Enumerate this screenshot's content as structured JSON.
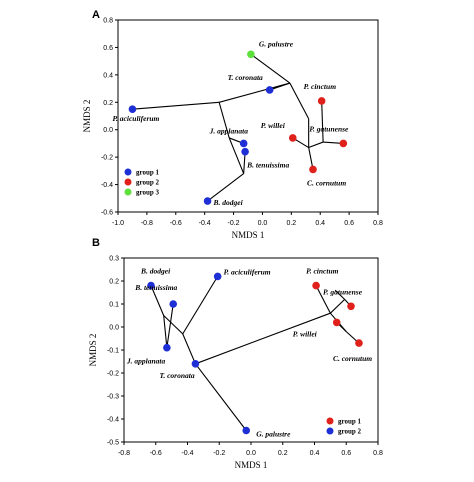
{
  "colors": {
    "group1": "#1f2fd6",
    "group2": "#e0201b",
    "group3": "#5de03c",
    "line": "#000000",
    "axis": "#000000"
  },
  "chart_data": [
    {
      "panel": "A",
      "type": "scatter",
      "xlabel": "NMDS 1",
      "ylabel": "NMDS 2",
      "xlim": [
        -1.0,
        0.8
      ],
      "ylim": [
        -0.6,
        0.8
      ],
      "xticks": [
        "-1.0",
        "-0.8",
        "-0.6",
        "-0.4",
        "-0.2",
        "0.0",
        "0.2",
        "0.4",
        "0.6",
        "0.8"
      ],
      "yticks": [
        "-0.6",
        "-0.4",
        "-0.2",
        "0.0",
        "0.2",
        "0.4",
        "0.6",
        "0.8"
      ],
      "legend": [
        {
          "name": "group 1",
          "color": "#1f2fd6"
        },
        {
          "name": "group 2",
          "color": "#e0201b"
        },
        {
          "name": "group 3",
          "color": "#5de03c"
        }
      ],
      "legend_position": "bottom-left",
      "points": [
        {
          "label": "G. palustre",
          "x": -0.08,
          "y": 0.55,
          "group": "group 3"
        },
        {
          "label": "T. coronata",
          "x": 0.05,
          "y": 0.29,
          "group": "group 1"
        },
        {
          "label": "P. aciculiferum",
          "x": -0.9,
          "y": 0.15,
          "group": "group 1"
        },
        {
          "label": "P. cinctum",
          "x": 0.41,
          "y": 0.21,
          "group": "group 2"
        },
        {
          "label": "J. applanata",
          "x": -0.13,
          "y": -0.1,
          "group": "group 1"
        },
        {
          "label": "B. tenuissima",
          "x": -0.12,
          "y": -0.16,
          "group": "group 1"
        },
        {
          "label": "P. willei",
          "x": 0.21,
          "y": -0.06,
          "group": "group 2"
        },
        {
          "label": "P. gatunense",
          "x": 0.56,
          "y": -0.1,
          "group": "group 2"
        },
        {
          "label": "C. cornutum",
          "x": 0.35,
          "y": -0.29,
          "group": "group 2"
        },
        {
          "label": "B. dodgei",
          "x": -0.38,
          "y": -0.52,
          "group": "group 1"
        }
      ],
      "segments": [
        [
          [
            -0.9,
            0.15
          ],
          [
            -0.3,
            0.2
          ]
        ],
        [
          [
            -0.3,
            0.2
          ],
          [
            0.19,
            0.34
          ]
        ],
        [
          [
            0.19,
            0.34
          ],
          [
            0.05,
            0.29
          ]
        ],
        [
          [
            0.19,
            0.34
          ],
          [
            -0.08,
            0.55
          ]
        ],
        [
          [
            0.19,
            0.34
          ],
          [
            0.32,
            0.08
          ]
        ],
        [
          [
            -0.3,
            0.2
          ],
          [
            -0.23,
            -0.06
          ]
        ],
        [
          [
            -0.23,
            -0.06
          ],
          [
            -0.13,
            -0.1
          ]
        ],
        [
          [
            -0.23,
            -0.06
          ],
          [
            -0.13,
            -0.32
          ]
        ],
        [
          [
            -0.13,
            -0.32
          ],
          [
            -0.12,
            -0.16
          ]
        ],
        [
          [
            -0.13,
            -0.32
          ],
          [
            -0.38,
            -0.52
          ]
        ],
        [
          [
            0.32,
            0.08
          ],
          [
            0.32,
            -0.13
          ]
        ],
        [
          [
            0.32,
            -0.13
          ],
          [
            0.21,
            -0.06
          ]
        ],
        [
          [
            0.32,
            -0.13
          ],
          [
            0.35,
            -0.29
          ]
        ],
        [
          [
            0.32,
            -0.13
          ],
          [
            0.42,
            -0.09
          ]
        ],
        [
          [
            0.42,
            -0.09
          ],
          [
            0.41,
            0.21
          ]
        ],
        [
          [
            0.42,
            -0.09
          ],
          [
            0.56,
            -0.1
          ]
        ]
      ]
    },
    {
      "panel": "B",
      "type": "scatter",
      "xlabel": "NMDS 1",
      "ylabel": "NMDS 2",
      "xlim": [
        -0.8,
        0.8
      ],
      "ylim": [
        -0.5,
        0.3
      ],
      "xticks": [
        "-0.8",
        "-0.6",
        "-0.4",
        "-0.2",
        "0.0",
        "0.2",
        "0.4",
        "0.6",
        "0.8"
      ],
      "yticks": [
        "-0.5",
        "-0.4",
        "-0.3",
        "-0.2",
        "-0.1",
        "0.0",
        "0.1",
        "0.2",
        "0.3"
      ],
      "legend": [
        {
          "name": "group 1",
          "color": "#e0201b"
        },
        {
          "name": "group 2",
          "color": "#1f2fd6"
        }
      ],
      "legend_position": "bottom-right",
      "points": [
        {
          "label": "B. dodgei",
          "x": -0.63,
          "y": 0.18,
          "group": "group 2"
        },
        {
          "label": "P. aciculiferum",
          "x": -0.21,
          "y": 0.22,
          "group": "group 2"
        },
        {
          "label": "B. tenuissima",
          "x": -0.49,
          "y": 0.1,
          "group": "group 2"
        },
        {
          "label": "J. applanata",
          "x": -0.53,
          "y": -0.09,
          "group": "group 2"
        },
        {
          "label": "T. coronata",
          "x": -0.35,
          "y": -0.16,
          "group": "group 2"
        },
        {
          "label": "G. palustre",
          "x": -0.03,
          "y": -0.45,
          "group": "group 2"
        },
        {
          "label": "P. cinctum",
          "x": 0.41,
          "y": 0.18,
          "group": "group 1"
        },
        {
          "label": "P. gatunense",
          "x": 0.63,
          "y": 0.09,
          "group": "group 1"
        },
        {
          "label": "P. willei",
          "x": 0.54,
          "y": 0.02,
          "group": "group 1"
        },
        {
          "label": "C. cornutum",
          "x": 0.68,
          "y": -0.07,
          "group": "group 1"
        }
      ],
      "segments": [
        [
          [
            -0.55,
            0.05
          ],
          [
            -0.63,
            0.18
          ]
        ],
        [
          [
            -0.55,
            0.05
          ],
          [
            -0.53,
            -0.09
          ]
        ],
        [
          [
            -0.53,
            -0.09
          ],
          [
            -0.49,
            0.1
          ]
        ],
        [
          [
            -0.55,
            0.05
          ],
          [
            -0.43,
            -0.03
          ]
        ],
        [
          [
            -0.43,
            -0.03
          ],
          [
            -0.21,
            0.22
          ]
        ],
        [
          [
            -0.43,
            -0.03
          ],
          [
            -0.35,
            -0.16
          ]
        ],
        [
          [
            -0.35,
            -0.16
          ],
          [
            -0.03,
            -0.45
          ]
        ],
        [
          [
            -0.35,
            -0.16
          ],
          [
            0.5,
            0.06
          ]
        ],
        [
          [
            0.5,
            0.06
          ],
          [
            0.41,
            0.18
          ]
        ],
        [
          [
            0.5,
            0.06
          ],
          [
            0.59,
            0.12
          ]
        ],
        [
          [
            0.59,
            0.12
          ],
          [
            0.63,
            0.09
          ]
        ],
        [
          [
            0.59,
            0.12
          ],
          [
            0.53,
            0.16
          ]
        ],
        [
          [
            0.5,
            0.06
          ],
          [
            0.6,
            -0.02
          ]
        ],
        [
          [
            0.6,
            -0.02
          ],
          [
            0.54,
            0.02
          ]
        ],
        [
          [
            0.6,
            -0.02
          ],
          [
            0.68,
            -0.07
          ]
        ]
      ]
    }
  ]
}
